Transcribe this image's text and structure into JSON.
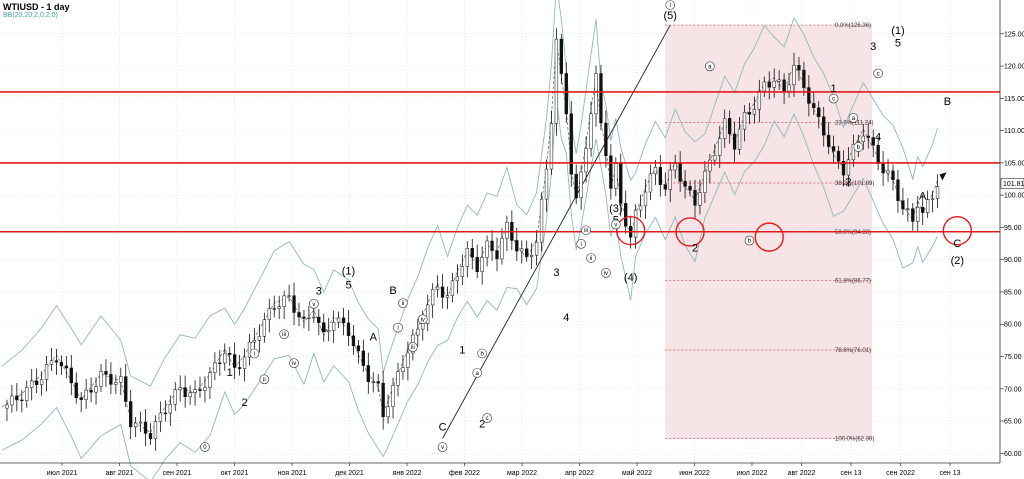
{
  "chart_data": {
    "type": "candlestick",
    "title": "WTIUSD - 1 day",
    "indicator": "BB(20,20,2,0,2,0)",
    "ylim": [
      58.5,
      129
    ],
    "y_ticks": [
      60,
      65,
      70,
      75,
      80,
      85,
      90,
      95,
      100,
      105,
      110,
      115,
      120,
      125
    ],
    "y_tick_labels": [
      "60.00",
      "65.00",
      "70.00",
      "75.00",
      "80.00",
      "85.00",
      "90.00",
      "95.00",
      "100.00",
      "105.00",
      "110.00",
      "115.00",
      "120.00",
      "125.00"
    ],
    "current_price": 101.81,
    "current_price_label": "101.81",
    "x_ticks": [
      "июл 2021",
      "авг 2021",
      "сен 2021",
      "окт 2021",
      "ноя 2021",
      "дек 2021",
      "янв 2022",
      "фев 2022",
      "мар 2022",
      "апр 2022",
      "май 2022",
      "июн 2022",
      "июл 2022",
      "авг 2022",
      "сен 13",
      "сен 2022",
      "сен 13"
    ],
    "x_tick_index": [
      0,
      1,
      2,
      3,
      4,
      5,
      6,
      7,
      8,
      9,
      10,
      11,
      12,
      13,
      14,
      15,
      16
    ],
    "horizontal_levels": [
      116.0,
      105.0,
      94.33
    ],
    "fib_levels": [
      {
        "label": "0.0%(126.36)",
        "value": 126.36
      },
      {
        "label": "23.6%(111.24)",
        "value": 111.24
      },
      {
        "label": "38.2%(101.89)",
        "value": 101.89
      },
      {
        "label": "50.0%(94.33)",
        "value": 94.33
      },
      {
        "label": "61.8%(86.77)",
        "value": 86.77
      },
      {
        "label": "78.6%(76.01)",
        "value": 76.01
      },
      {
        "label": "100.0%(62.30)",
        "value": 62.3
      }
    ],
    "price_path": [
      [
        0,
        67
      ],
      [
        4,
        69
      ],
      [
        8,
        72
      ],
      [
        11,
        75
      ],
      [
        14,
        71
      ],
      [
        16,
        68
      ],
      [
        20,
        72
      ],
      [
        24,
        71
      ],
      [
        26,
        65
      ],
      [
        30,
        63
      ],
      [
        33,
        67
      ],
      [
        36,
        70
      ],
      [
        39,
        69
      ],
      [
        42,
        72
      ],
      [
        45,
        76
      ],
      [
        47,
        73
      ],
      [
        49,
        75
      ],
      [
        52,
        79
      ],
      [
        55,
        83
      ],
      [
        58,
        84
      ],
      [
        61,
        80
      ],
      [
        63,
        82
      ],
      [
        65,
        78
      ],
      [
        67,
        81
      ],
      [
        70,
        79
      ],
      [
        72,
        75
      ],
      [
        74,
        72
      ],
      [
        76,
        70
      ],
      [
        77,
        66
      ],
      [
        78,
        68
      ],
      [
        80,
        72
      ],
      [
        82,
        76
      ],
      [
        84,
        79
      ],
      [
        86,
        83
      ],
      [
        88,
        86
      ],
      [
        90,
        84
      ],
      [
        92,
        88
      ],
      [
        94,
        91
      ],
      [
        96,
        89
      ],
      [
        98,
        92
      ],
      [
        100,
        91
      ],
      [
        102,
        95
      ],
      [
        104,
        92
      ],
      [
        106,
        90
      ],
      [
        108,
        93
      ],
      [
        110,
        104
      ],
      [
        111,
        112
      ],
      [
        112,
        124
      ],
      [
        113,
        118
      ],
      [
        114,
        113
      ],
      [
        115,
        104
      ],
      [
        116,
        99
      ],
      [
        117,
        103
      ],
      [
        118,
        108
      ],
      [
        119,
        113
      ],
      [
        120,
        118
      ],
      [
        121,
        111
      ],
      [
        122,
        107
      ],
      [
        123,
        101
      ],
      [
        124,
        104
      ],
      [
        125,
        99
      ],
      [
        126,
        96
      ],
      [
        127,
        93
      ],
      [
        128,
        97
      ],
      [
        130,
        101
      ],
      [
        132,
        104
      ],
      [
        134,
        101
      ],
      [
        136,
        105
      ],
      [
        138,
        101
      ],
      [
        140,
        99
      ],
      [
        142,
        103
      ],
      [
        144,
        107
      ],
      [
        146,
        111
      ],
      [
        148,
        108
      ],
      [
        150,
        112
      ],
      [
        152,
        114
      ],
      [
        154,
        117
      ],
      [
        156,
        118
      ],
      [
        158,
        116
      ],
      [
        160,
        120
      ],
      [
        162,
        117
      ],
      [
        164,
        113
      ],
      [
        166,
        110
      ],
      [
        168,
        106
      ],
      [
        170,
        104
      ],
      [
        172,
        107
      ],
      [
        174,
        110
      ],
      [
        176,
        107
      ],
      [
        178,
        104
      ],
      [
        180,
        102
      ],
      [
        182,
        98
      ],
      [
        184,
        96
      ],
      [
        185,
        99
      ],
      [
        186,
        97
      ],
      [
        188,
        100
      ],
      [
        189,
        102
      ]
    ],
    "waves": [
      {
        "label": "0",
        "x": 41,
        "y": 60.5,
        "circle": true
      },
      {
        "label": "1",
        "x": 46,
        "y": 72
      },
      {
        "label": "2",
        "x": 49,
        "y": 67.3
      },
      {
        "label": "i",
        "x": 51,
        "y": 75
      },
      {
        "label": "ii",
        "x": 53,
        "y": 71
      },
      {
        "label": "iii",
        "x": 57,
        "y": 78
      },
      {
        "label": "iv",
        "x": 59,
        "y": 73.5
      },
      {
        "label": "v",
        "x": 63,
        "y": 82.7
      },
      {
        "label": "3",
        "x": 64,
        "y": 84.6
      },
      {
        "label": "4",
        "x": 65,
        "y": 78.8
      },
      {
        "label": "(1)",
        "x": 70,
        "y": 87.7
      },
      {
        "label": "5",
        "x": 70,
        "y": 85.5
      },
      {
        "label": "A",
        "x": 75,
        "y": 77.5
      },
      {
        "label": "B",
        "x": 79,
        "y": 84.7
      },
      {
        "label": "i",
        "x": 80,
        "y": 79
      },
      {
        "label": "ii",
        "x": 81,
        "y": 82.8
      },
      {
        "label": "iii",
        "x": 83,
        "y": 76
      },
      {
        "label": "iv",
        "x": 85,
        "y": 80.3
      },
      {
        "label": "v",
        "x": 89,
        "y": 60.5
      },
      {
        "label": "C",
        "x": 89,
        "y": 63.5
      },
      {
        "label": "1",
        "x": 93,
        "y": 75.5
      },
      {
        "label": "2",
        "x": 97,
        "y": 64
      },
      {
        "label": "a",
        "x": 96,
        "y": 72
      },
      {
        "label": "b",
        "x": 97,
        "y": 75
      },
      {
        "label": "c",
        "x": 98,
        "y": 65
      },
      {
        "label": "3",
        "x": 112,
        "y": 87.5
      },
      {
        "label": "4",
        "x": 114,
        "y": 80.5
      },
      {
        "label": "(3)",
        "x": 124,
        "y": 97.4
      },
      {
        "label": "5",
        "x": 124,
        "y": 95.6
      },
      {
        "label": "(4)",
        "x": 127,
        "y": 86.7
      },
      {
        "label": "i",
        "x": 117,
        "y": 92
      },
      {
        "label": "ii",
        "x": 119,
        "y": 89.8
      },
      {
        "label": "iii",
        "x": 118,
        "y": 94.1
      },
      {
        "label": "iv",
        "x": 122,
        "y": 87.5
      },
      {
        "label": "v",
        "x": 124,
        "y": 95
      },
      {
        "label": "(5)",
        "x": 135,
        "y": 127.3
      },
      {
        "label": "I",
        "x": 135,
        "y": 129
      },
      {
        "label": "a",
        "x": 143,
        "y": 119.5
      },
      {
        "label": "b",
        "x": 151,
        "y": 92.5
      },
      {
        "label": "c",
        "x": 168,
        "y": 114.5
      },
      {
        "label": "2",
        "x": 140,
        "y": 91.3
      },
      {
        "label": "1",
        "x": 168,
        "y": 116
      },
      {
        "label": "2",
        "x": 171,
        "y": 101.5
      },
      {
        "label": "a",
        "x": 172,
        "y": 111.5
      },
      {
        "label": "b",
        "x": 173,
        "y": 107
      },
      {
        "label": "c",
        "x": 177,
        "y": 118.4
      },
      {
        "label": "3",
        "x": 176,
        "y": 122.5
      },
      {
        "label": "4",
        "x": 177,
        "y": 108.5
      },
      {
        "label": "(1)",
        "x": 181,
        "y": 125
      },
      {
        "label": "5",
        "x": 181,
        "y": 123
      },
      {
        "label": "A",
        "x": 186,
        "y": 99.3
      },
      {
        "label": "B",
        "x": 191,
        "y": 114
      },
      {
        "label": "C",
        "x": 193,
        "y": 92
      },
      {
        "label": "(2)",
        "x": 193,
        "y": 89.3
      }
    ],
    "circles": [
      {
        "x": 127,
        "y": 94.5
      },
      {
        "x": 139,
        "y": 94.3
      },
      {
        "x": 155,
        "y": 93.5
      },
      {
        "x": 193,
        "y": 94.5
      }
    ]
  }
}
